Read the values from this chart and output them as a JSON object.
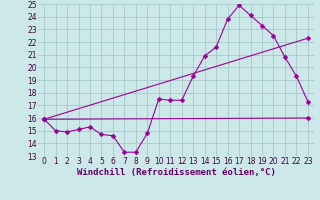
{
  "xlabel": "Windchill (Refroidissement éolien,°C)",
  "bg_color": "#cce8e8",
  "grid_color": "#aacccc",
  "line_color": "#990099",
  "xlim": [
    -0.5,
    23.5
  ],
  "ylim": [
    13,
    25
  ],
  "xticks": [
    0,
    1,
    2,
    3,
    4,
    5,
    6,
    7,
    8,
    9,
    10,
    11,
    12,
    13,
    14,
    15,
    16,
    17,
    18,
    19,
    20,
    21,
    22,
    23
  ],
  "yticks": [
    13,
    14,
    15,
    16,
    17,
    18,
    19,
    20,
    21,
    22,
    23,
    24,
    25
  ],
  "curve1_x": [
    0,
    1,
    2,
    3,
    4,
    5,
    6,
    7,
    8,
    9,
    10,
    11,
    12,
    13,
    14,
    15,
    16,
    17,
    18,
    19,
    20,
    21,
    22,
    23
  ],
  "curve1_y": [
    15.9,
    15.0,
    14.9,
    15.1,
    15.3,
    14.7,
    14.6,
    13.3,
    13.3,
    14.8,
    17.5,
    17.4,
    17.4,
    19.3,
    20.9,
    21.6,
    23.8,
    24.9,
    24.1,
    23.3,
    22.5,
    20.8,
    19.3,
    17.3
  ],
  "curve2_x": [
    0,
    23
  ],
  "curve2_y": [
    15.9,
    16.0
  ],
  "curve3_x": [
    0,
    23
  ],
  "curve3_y": [
    15.9,
    22.3
  ],
  "marker_size": 2.5,
  "font_size": 6.5,
  "tick_font_size": 5.5
}
